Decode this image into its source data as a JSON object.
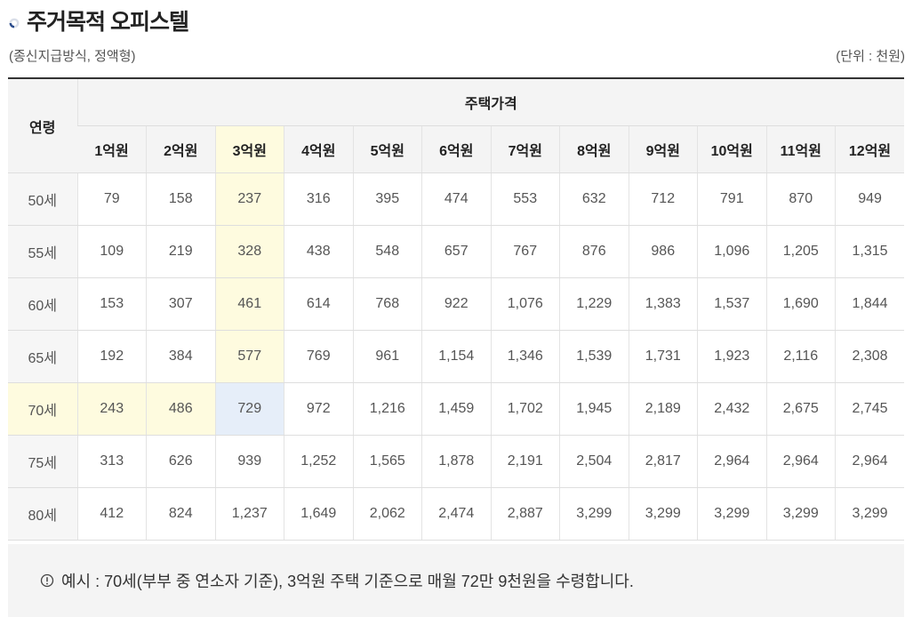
{
  "title": "주거목적 오피스텔",
  "subtitle_left": "(종신지급방식, 정액형)",
  "subtitle_right": "(단위 : 천원)",
  "table": {
    "age_header": "연령",
    "price_header": "주택가격",
    "columns": [
      "1억원",
      "2억원",
      "3억원",
      "4억원",
      "5억원",
      "6억원",
      "7억원",
      "8억원",
      "9억원",
      "10억원",
      "11억원",
      "12억원"
    ],
    "rows": [
      {
        "age": "50세",
        "values": [
          "79",
          "158",
          "237",
          "316",
          "395",
          "474",
          "553",
          "632",
          "712",
          "791",
          "870",
          "949"
        ]
      },
      {
        "age": "55세",
        "values": [
          "109",
          "219",
          "328",
          "438",
          "548",
          "657",
          "767",
          "876",
          "986",
          "1,096",
          "1,205",
          "1,315"
        ]
      },
      {
        "age": "60세",
        "values": [
          "153",
          "307",
          "461",
          "614",
          "768",
          "922",
          "1,076",
          "1,229",
          "1,383",
          "1,537",
          "1,690",
          "1,844"
        ]
      },
      {
        "age": "65세",
        "values": [
          "192",
          "384",
          "577",
          "769",
          "961",
          "1,154",
          "1,346",
          "1,539",
          "1,731",
          "1,923",
          "2,116",
          "2,308"
        ]
      },
      {
        "age": "70세",
        "values": [
          "243",
          "486",
          "729",
          "972",
          "1,216",
          "1,459",
          "1,702",
          "1,945",
          "2,189",
          "2,432",
          "2,675",
          "2,745"
        ]
      },
      {
        "age": "75세",
        "values": [
          "313",
          "626",
          "939",
          "1,252",
          "1,565",
          "1,878",
          "2,191",
          "2,504",
          "2,817",
          "2,964",
          "2,964",
          "2,964"
        ]
      },
      {
        "age": "80세",
        "values": [
          "412",
          "824",
          "1,237",
          "1,649",
          "2,062",
          "2,474",
          "2,887",
          "3,299",
          "3,299",
          "3,299",
          "3,299",
          "3,299"
        ]
      }
    ],
    "highlight_column_index": 2,
    "highlight_row_index": 4,
    "colors": {
      "highlight_yellow": "#fefbdf",
      "highlight_blue": "#e6eef9"
    }
  },
  "note": {
    "icon": "exclamation-circle-icon",
    "text": "예시 : 70세(부부 중 연소자 기준), 3억원 주택 기준으로 매월 72만 9천원을 수령합니다."
  }
}
